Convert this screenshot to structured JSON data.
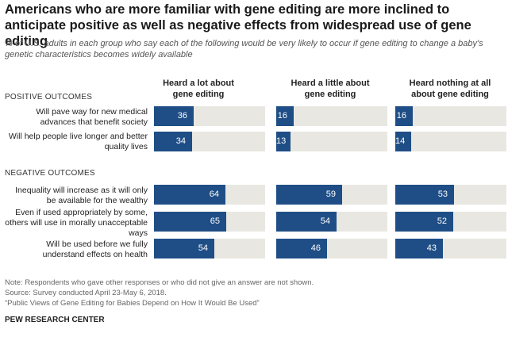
{
  "title": "Americans who are more familiar with gene editing are more inclined to anticipate positive as well as negative effects from widespread use of gene editing",
  "subtitle": "% of U.S. adults in each group who say each of the following would be very likely to occur if gene editing to change a baby's genetic characteristics becomes widely available",
  "colors": {
    "bar": "#1f4e86",
    "track": "#e8e7e1"
  },
  "chart_data": {
    "type": "bar",
    "orientation": "horizontal",
    "xlim": [
      0,
      100
    ],
    "groups": [
      "Heard a lot about gene editing",
      "Heard a little about gene editing",
      "Heard nothing at all about gene editing"
    ],
    "sections": [
      {
        "name": "POSITIVE OUTCOMES",
        "rows": [
          {
            "label": "Will pave way for new medical advances that benefit society",
            "values": [
              36,
              16,
              16
            ]
          },
          {
            "label": "Will help people live longer and better quality lives",
            "values": [
              34,
              13,
              14
            ]
          }
        ]
      },
      {
        "name": "NEGATIVE OUTCOMES",
        "rows": [
          {
            "label": "Inequality will increase as it will only be available for the wealthy",
            "values": [
              64,
              59,
              53
            ]
          },
          {
            "label": "Even if used appropriately by some, others will use in morally unacceptable ways",
            "values": [
              65,
              54,
              52
            ]
          },
          {
            "label": "Will be used before we fully understand effects on health",
            "values": [
              54,
              46,
              43
            ]
          }
        ]
      }
    ]
  },
  "notes": [
    "Note: Respondents who gave other responses or who did not give an answer are not shown.",
    "Source: Survey conducted April 23-May 6, 2018.",
    "“Public Views of Gene Editing for Babies Depend on How It Would Be Used”"
  ],
  "brand": "PEW RESEARCH CENTER"
}
